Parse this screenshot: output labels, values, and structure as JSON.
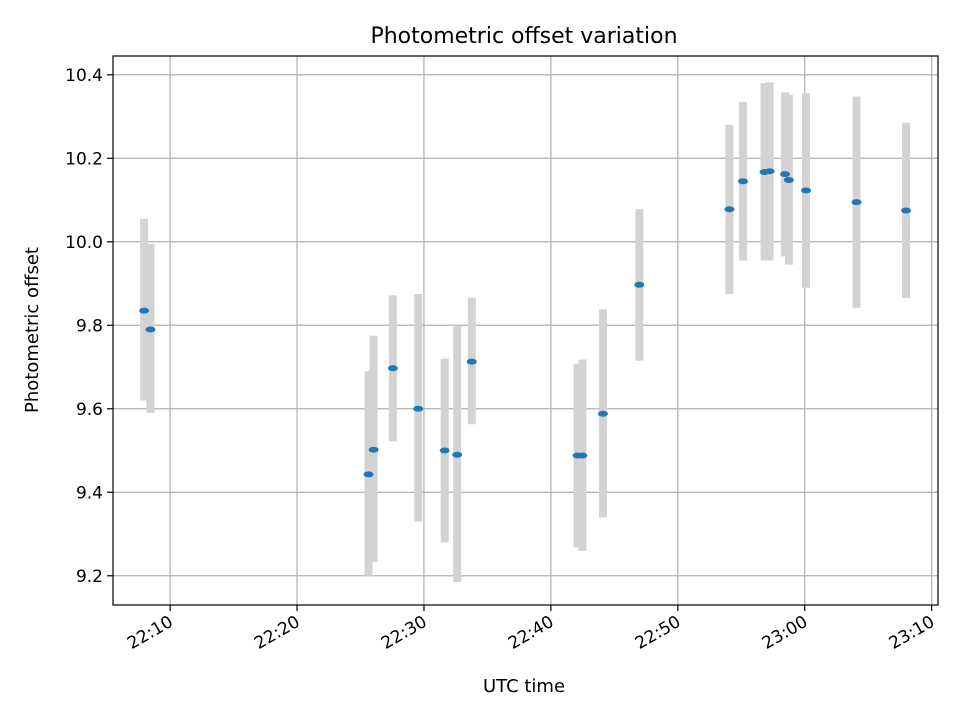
{
  "chart_data": {
    "type": "scatter",
    "title": "Photometric offset variation",
    "xlabel": "UTC time",
    "ylabel": "Photometric offset",
    "grid": true,
    "x_range": [
      "22:05:30",
      "23:10:30"
    ],
    "ylim": [
      9.13,
      10.445
    ],
    "x_ticks": [
      "22:10",
      "22:20",
      "22:30",
      "22:40",
      "22:50",
      "23:00",
      "23:10"
    ],
    "y_ticks": [
      9.2,
      9.4,
      9.6,
      9.8,
      10.0,
      10.2,
      10.4
    ],
    "y_tick_labels": [
      "9.2",
      "9.4",
      "9.6",
      "9.8",
      "10.0",
      "10.2",
      "10.4"
    ],
    "colors": {
      "points": "#1f77b4",
      "error_bars": "#d3d3d3",
      "grid": "#b0b0b0"
    },
    "series": [
      {
        "points": [
          {
            "x": "22:07:57",
            "y": 9.835,
            "y_low": 9.62,
            "y_high": 10.055
          },
          {
            "x": "22:08:27",
            "y": 9.79,
            "y_low": 9.59,
            "y_high": 9.995
          },
          {
            "x": "22:25:38",
            "y": 9.443,
            "y_low": 9.2,
            "y_high": 9.69
          },
          {
            "x": "22:26:02",
            "y": 9.502,
            "y_low": 9.233,
            "y_high": 9.775
          },
          {
            "x": "22:27:33",
            "y": 9.697,
            "y_low": 9.522,
            "y_high": 9.872
          },
          {
            "x": "22:29:33",
            "y": 9.6,
            "y_low": 9.33,
            "y_high": 9.875
          },
          {
            "x": "22:31:38",
            "y": 9.5,
            "y_low": 9.28,
            "y_high": 9.72
          },
          {
            "x": "22:32:37",
            "y": 9.49,
            "y_low": 9.185,
            "y_high": 9.8
          },
          {
            "x": "22:33:46",
            "y": 9.713,
            "y_low": 9.563,
            "y_high": 9.866
          },
          {
            "x": "22:42:06",
            "y": 9.488,
            "y_low": 9.268,
            "y_high": 9.708
          },
          {
            "x": "22:42:29",
            "y": 9.488,
            "y_low": 9.26,
            "y_high": 9.718
          },
          {
            "x": "22:44:06",
            "y": 9.588,
            "y_low": 9.34,
            "y_high": 9.838
          },
          {
            "x": "22:46:58",
            "y": 9.897,
            "y_low": 9.715,
            "y_high": 10.078
          },
          {
            "x": "22:54:04",
            "y": 10.078,
            "y_low": 9.875,
            "y_high": 10.28
          },
          {
            "x": "22:55:08",
            "y": 10.145,
            "y_low": 9.955,
            "y_high": 10.335
          },
          {
            "x": "22:56:50",
            "y": 10.167,
            "y_low": 9.955,
            "y_high": 10.38
          },
          {
            "x": "22:57:14",
            "y": 10.169,
            "y_low": 9.955,
            "y_high": 10.382
          },
          {
            "x": "22:58:27",
            "y": 10.162,
            "y_low": 9.965,
            "y_high": 10.358
          },
          {
            "x": "22:58:45",
            "y": 10.148,
            "y_low": 9.945,
            "y_high": 10.352
          },
          {
            "x": "23:00:06",
            "y": 10.123,
            "y_low": 9.89,
            "y_high": 10.356
          },
          {
            "x": "23:04:05",
            "y": 10.095,
            "y_low": 9.842,
            "y_high": 10.348
          },
          {
            "x": "23:07:59",
            "y": 10.075,
            "y_low": 9.865,
            "y_high": 10.285
          }
        ]
      }
    ]
  }
}
